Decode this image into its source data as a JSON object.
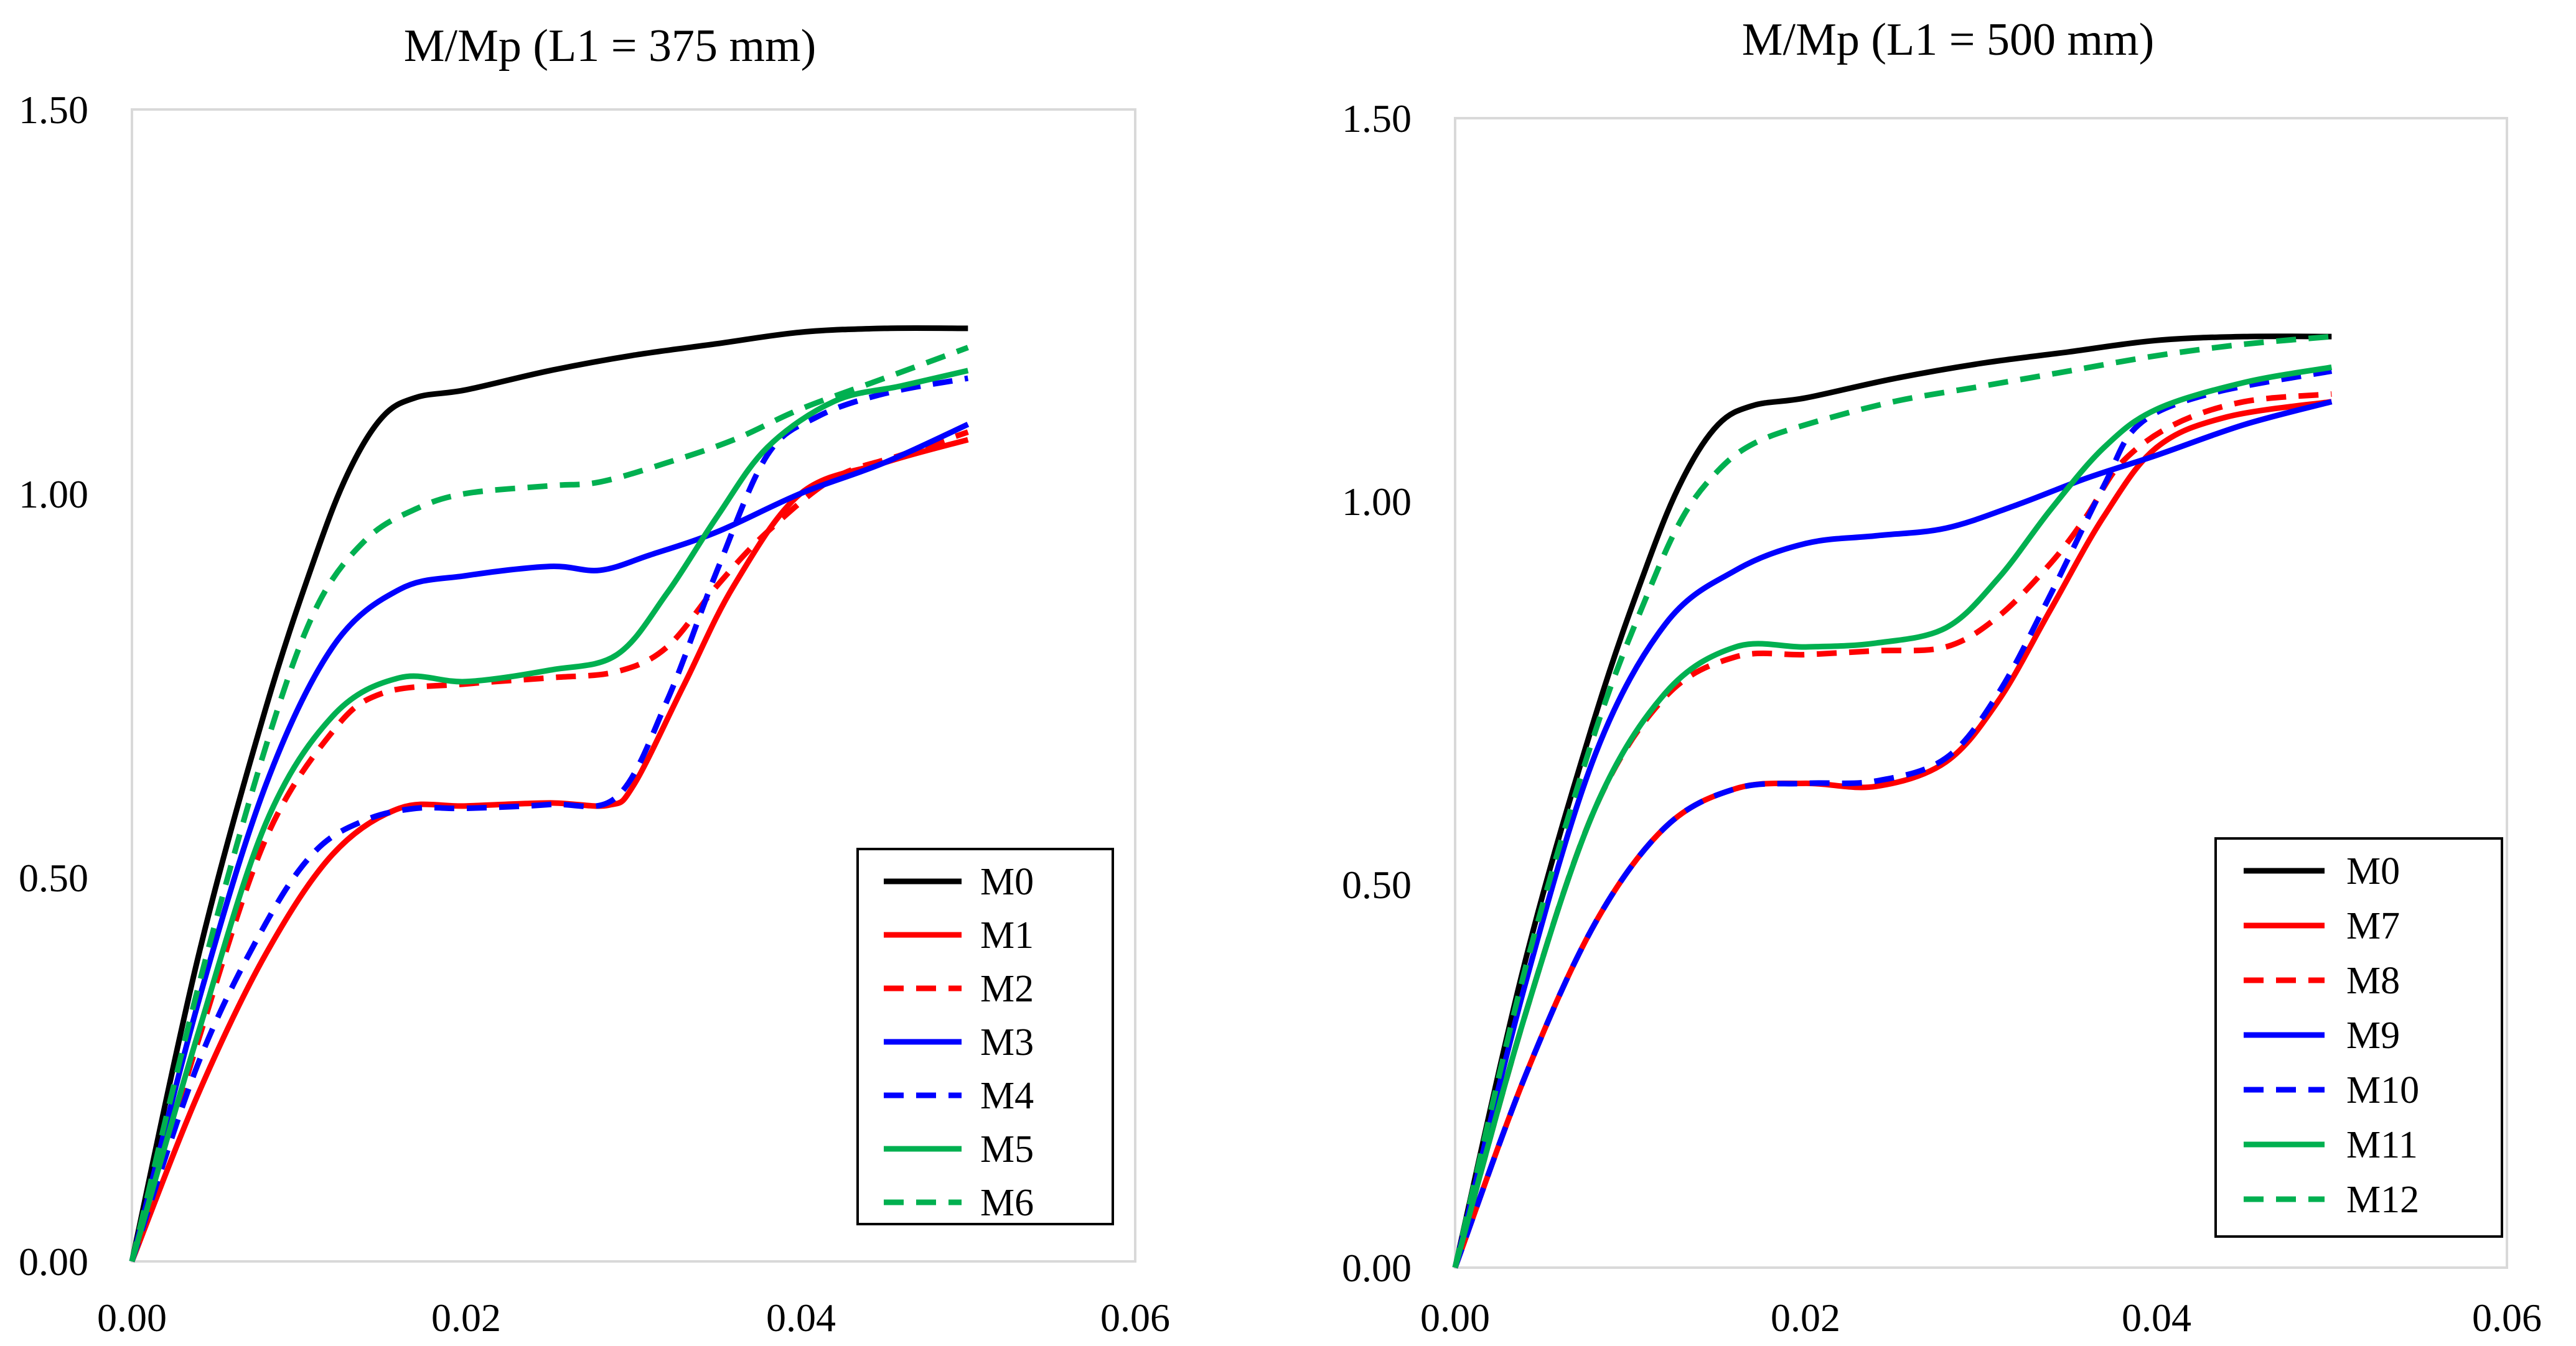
{
  "chart_data": [
    {
      "type": "line",
      "title": "M/Mp (L1 = 375 mm)",
      "xlabel": "",
      "ylabel": "",
      "xlim": [
        0,
        0.06
      ],
      "ylim": [
        0,
        1.5
      ],
      "xticks": [
        "0.00",
        "0.02",
        "0.04",
        "0.06"
      ],
      "yticks": [
        "0.00",
        "0.50",
        "1.00",
        "1.50"
      ],
      "grid": false,
      "legend_position": "bottom-right",
      "series": [
        {
          "name": "M0",
          "color": "#000000",
          "dash": "solid",
          "points": [
            [
              0,
              0
            ],
            [
              0.004,
              0.4
            ],
            [
              0.008,
              0.72
            ],
            [
              0.011,
              0.92
            ],
            [
              0.013,
              1.03
            ],
            [
              0.015,
              1.1
            ],
            [
              0.017,
              1.125
            ],
            [
              0.02,
              1.135
            ],
            [
              0.025,
              1.16
            ],
            [
              0.03,
              1.18
            ],
            [
              0.035,
              1.195
            ],
            [
              0.04,
              1.21
            ],
            [
              0.045,
              1.215
            ],
            [
              0.05,
              1.215
            ]
          ]
        },
        {
          "name": "M1",
          "color": "#ff0000",
          "dash": "solid",
          "points": [
            [
              0,
              0
            ],
            [
              0.004,
              0.22
            ],
            [
              0.008,
              0.4
            ],
            [
              0.012,
              0.53
            ],
            [
              0.016,
              0.59
            ],
            [
              0.02,
              0.593
            ],
            [
              0.025,
              0.597
            ],
            [
              0.0285,
              0.594
            ],
            [
              0.03,
              0.62
            ],
            [
              0.033,
              0.75
            ],
            [
              0.036,
              0.88
            ],
            [
              0.04,
              1.0
            ],
            [
              0.045,
              1.04
            ],
            [
              0.05,
              1.07
            ]
          ]
        },
        {
          "name": "M2",
          "color": "#ff0000",
          "dash": "dashed",
          "points": [
            [
              0,
              0
            ],
            [
              0.004,
              0.29
            ],
            [
              0.008,
              0.55
            ],
            [
              0.012,
              0.69
            ],
            [
              0.015,
              0.74
            ],
            [
              0.02,
              0.752
            ],
            [
              0.025,
              0.76
            ],
            [
              0.029,
              0.768
            ],
            [
              0.032,
              0.8
            ],
            [
              0.035,
              0.88
            ],
            [
              0.038,
              0.95
            ],
            [
              0.042,
              1.02
            ],
            [
              0.046,
              1.05
            ],
            [
              0.05,
              1.08
            ]
          ]
        },
        {
          "name": "M3",
          "color": "#0000ff",
          "dash": "solid",
          "points": [
            [
              0,
              0
            ],
            [
              0.004,
              0.34
            ],
            [
              0.008,
              0.62
            ],
            [
              0.012,
              0.8
            ],
            [
              0.016,
              0.875
            ],
            [
              0.02,
              0.893
            ],
            [
              0.025,
              0.905
            ],
            [
              0.028,
              0.9
            ],
            [
              0.031,
              0.92
            ],
            [
              0.035,
              0.95
            ],
            [
              0.04,
              1.0
            ],
            [
              0.045,
              1.04
            ],
            [
              0.05,
              1.09
            ]
          ]
        },
        {
          "name": "M4",
          "color": "#0000ff",
          "dash": "dashed",
          "points": [
            [
              0,
              0
            ],
            [
              0.004,
              0.26
            ],
            [
              0.008,
              0.44
            ],
            [
              0.011,
              0.535
            ],
            [
              0.014,
              0.575
            ],
            [
              0.017,
              0.59
            ],
            [
              0.02,
              0.59
            ],
            [
              0.025,
              0.595
            ],
            [
              0.029,
              0.605
            ],
            [
              0.032,
              0.73
            ],
            [
              0.035,
              0.9
            ],
            [
              0.038,
              1.05
            ],
            [
              0.041,
              1.1
            ],
            [
              0.045,
              1.13
            ],
            [
              0.05,
              1.15
            ]
          ]
        },
        {
          "name": "M5",
          "color": "#00b050",
          "dash": "solid",
          "points": [
            [
              0,
              0
            ],
            [
              0.004,
              0.3
            ],
            [
              0.008,
              0.57
            ],
            [
              0.012,
              0.71
            ],
            [
              0.016,
              0.76
            ],
            [
              0.02,
              0.755
            ],
            [
              0.025,
              0.77
            ],
            [
              0.029,
              0.79
            ],
            [
              0.032,
              0.87
            ],
            [
              0.035,
              0.97
            ],
            [
              0.038,
              1.06
            ],
            [
              0.042,
              1.12
            ],
            [
              0.046,
              1.14
            ],
            [
              0.05,
              1.16
            ]
          ]
        },
        {
          "name": "M6",
          "color": "#00b050",
          "dash": "dashed",
          "points": [
            [
              0,
              0
            ],
            [
              0.004,
              0.36
            ],
            [
              0.008,
              0.67
            ],
            [
              0.011,
              0.85
            ],
            [
              0.014,
              0.94
            ],
            [
              0.017,
              0.98
            ],
            [
              0.02,
              1.0
            ],
            [
              0.025,
              1.01
            ],
            [
              0.028,
              1.015
            ],
            [
              0.032,
              1.04
            ],
            [
              0.036,
              1.07
            ],
            [
              0.04,
              1.11
            ],
            [
              0.045,
              1.15
            ],
            [
              0.05,
              1.19
            ]
          ]
        }
      ]
    },
    {
      "type": "line",
      "title": "M/Mp (L1 = 500 mm)",
      "xlabel": "",
      "ylabel": "",
      "xlim": [
        0,
        0.06
      ],
      "ylim": [
        0,
        1.5
      ],
      "xticks": [
        "0.00",
        "0.02",
        "0.04",
        "0.06"
      ],
      "yticks": [
        "0.00",
        "0.50",
        "1.00",
        "1.50"
      ],
      "grid": false,
      "legend_position": "bottom-right",
      "series": [
        {
          "name": "M0",
          "color": "#000000",
          "dash": "solid",
          "points": [
            [
              0,
              0
            ],
            [
              0.004,
              0.4
            ],
            [
              0.008,
              0.72
            ],
            [
              0.011,
              0.92
            ],
            [
              0.013,
              1.03
            ],
            [
              0.015,
              1.1
            ],
            [
              0.017,
              1.125
            ],
            [
              0.02,
              1.135
            ],
            [
              0.025,
              1.16
            ],
            [
              0.03,
              1.18
            ],
            [
              0.035,
              1.195
            ],
            [
              0.04,
              1.21
            ],
            [
              0.045,
              1.215
            ],
            [
              0.05,
              1.215
            ]
          ]
        },
        {
          "name": "M7",
          "color": "#ff0000",
          "dash": "solid",
          "points": [
            [
              0,
              0
            ],
            [
              0.004,
              0.25
            ],
            [
              0.008,
              0.45
            ],
            [
              0.012,
              0.575
            ],
            [
              0.016,
              0.625
            ],
            [
              0.02,
              0.632
            ],
            [
              0.024,
              0.628
            ],
            [
              0.028,
              0.66
            ],
            [
              0.031,
              0.74
            ],
            [
              0.034,
              0.86
            ],
            [
              0.037,
              0.98
            ],
            [
              0.04,
              1.07
            ],
            [
              0.044,
              1.11
            ],
            [
              0.05,
              1.13
            ]
          ]
        },
        {
          "name": "M8",
          "color": "#ff0000",
          "dash": "dashed",
          "points": [
            [
              0,
              0
            ],
            [
              0.004,
              0.33
            ],
            [
              0.008,
              0.6
            ],
            [
              0.012,
              0.745
            ],
            [
              0.016,
              0.797
            ],
            [
              0.02,
              0.8
            ],
            [
              0.024,
              0.805
            ],
            [
              0.028,
              0.81
            ],
            [
              0.031,
              0.85
            ],
            [
              0.034,
              0.92
            ],
            [
              0.036,
              0.98
            ],
            [
              0.038,
              1.05
            ],
            [
              0.041,
              1.1
            ],
            [
              0.045,
              1.13
            ],
            [
              0.05,
              1.14
            ]
          ]
        },
        {
          "name": "M9",
          "color": "#0000ff",
          "dash": "solid",
          "points": [
            [
              0,
              0
            ],
            [
              0.004,
              0.37
            ],
            [
              0.008,
              0.67
            ],
            [
              0.012,
              0.84
            ],
            [
              0.016,
              0.91
            ],
            [
              0.02,
              0.945
            ],
            [
              0.024,
              0.955
            ],
            [
              0.028,
              0.965
            ],
            [
              0.032,
              0.995
            ],
            [
              0.036,
              1.03
            ],
            [
              0.04,
              1.06
            ],
            [
              0.045,
              1.1
            ],
            [
              0.05,
              1.13
            ]
          ]
        },
        {
          "name": "M10",
          "color": "#0000ff",
          "dash": "dashed",
          "points": [
            [
              0,
              0
            ],
            [
              0.004,
              0.25
            ],
            [
              0.008,
              0.45
            ],
            [
              0.012,
              0.575
            ],
            [
              0.016,
              0.625
            ],
            [
              0.02,
              0.632
            ],
            [
              0.024,
              0.635
            ],
            [
              0.028,
              0.665
            ],
            [
              0.031,
              0.75
            ],
            [
              0.034,
              0.88
            ],
            [
              0.037,
              1.02
            ],
            [
              0.039,
              1.1
            ],
            [
              0.043,
              1.14
            ],
            [
              0.05,
              1.17
            ]
          ]
        },
        {
          "name": "M11",
          "color": "#00b050",
          "dash": "solid",
          "points": [
            [
              0,
              0
            ],
            [
              0.004,
              0.33
            ],
            [
              0.008,
              0.6
            ],
            [
              0.012,
              0.75
            ],
            [
              0.016,
              0.81
            ],
            [
              0.02,
              0.81
            ],
            [
              0.024,
              0.815
            ],
            [
              0.028,
              0.835
            ],
            [
              0.031,
              0.9
            ],
            [
              0.034,
              0.99
            ],
            [
              0.037,
              1.07
            ],
            [
              0.04,
              1.12
            ],
            [
              0.045,
              1.155
            ],
            [
              0.05,
              1.175
            ]
          ]
        },
        {
          "name": "M12",
          "color": "#00b050",
          "dash": "dashed",
          "points": [
            [
              0,
              0
            ],
            [
              0.004,
              0.39
            ],
            [
              0.008,
              0.7
            ],
            [
              0.011,
              0.88
            ],
            [
              0.013,
              0.98
            ],
            [
              0.015,
              1.04
            ],
            [
              0.017,
              1.075
            ],
            [
              0.02,
              1.1
            ],
            [
              0.025,
              1.13
            ],
            [
              0.03,
              1.15
            ],
            [
              0.035,
              1.17
            ],
            [
              0.04,
              1.19
            ],
            [
              0.045,
              1.205
            ],
            [
              0.05,
              1.215
            ]
          ]
        }
      ]
    }
  ]
}
